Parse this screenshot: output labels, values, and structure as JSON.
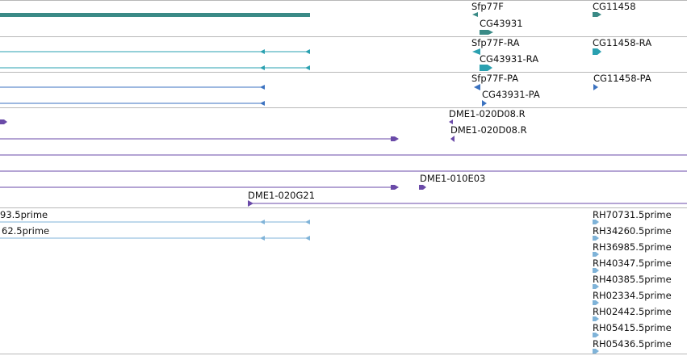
{
  "colors": {
    "gene_teal": "#3a8a86",
    "transcript_teal": "#2aa0b0",
    "protein_blue": "#3b72c0",
    "clone_purple": "#6a4aa8",
    "est_lightblue": "#7fb3d8",
    "separator": "#b8b8b8"
  },
  "tracks": {
    "genes": {
      "labels": {
        "sfp77f": "Sfp77F",
        "cg43931": "CG43931",
        "cg11458": "CG11458"
      }
    },
    "transcripts": {
      "labels": {
        "sfp77f_ra": "Sfp77F-RA",
        "cg43931_ra": "CG43931-RA",
        "cg11458_ra": "CG11458-RA"
      }
    },
    "proteins": {
      "labels": {
        "sfp77f_pa": "Sfp77F-PA",
        "cg43931_pa": "CG43931-PA",
        "cg11458_pa": "CG11458-PA"
      }
    },
    "clones": {
      "labels": {
        "dme1_020d08_a": "DME1-020D08.R",
        "dme1_020d08_b": "DME1-020D08.R",
        "dme1_010e03": "DME1-010E03",
        "dme1_020g21": "DME1-020G21"
      }
    },
    "ests": {
      "left_labels": [
        "93.5prime",
        "62.5prime"
      ],
      "right_labels": [
        "RH70731.5prime",
        "RH34260.5prime",
        "RH36985.5prime",
        "RH40347.5prime",
        "RH40385.5prime",
        "RH02334.5prime",
        "RH02442.5prime",
        "RH05415.5prime",
        "RH05436.5prime"
      ]
    }
  }
}
